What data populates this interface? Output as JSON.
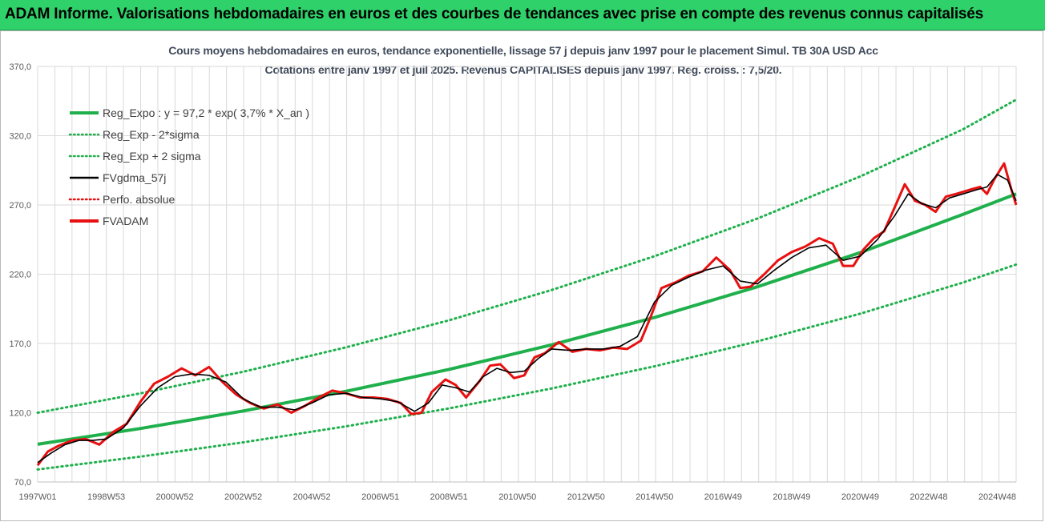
{
  "header": {
    "title": "ADAM Informe. Valorisations hebdomadaires en euros et des courbes de tendances avec prise en compte des revenus connus capitalisés"
  },
  "colors": {
    "header_bg": "#2fd16a",
    "trend": "#1fb04c",
    "price": "#e81010",
    "smooth": "#000000",
    "grid": "#d9d9d9"
  },
  "chart_data": {
    "type": "line",
    "title": "Cours moyens hebdomadaires en euros, tendance exponentielle, lissage 57 j depuis janv 1997 pour le placement Simul. TB 30A USD Acc",
    "subtitle": "Cotations entre janv 1997 et juil 2025. Revenus CAPITALISES depuis janv 1997.  Reg. croiss. : 7,5/20.",
    "xlabel": "",
    "ylabel": "",
    "ylim": [
      70,
      370
    ],
    "yticks": [
      "70,0",
      "120,0",
      "170,0",
      "220,0",
      "270,0",
      "320,0",
      "370,0"
    ],
    "xticks": [
      "1997W01",
      "1998W53",
      "2000W52",
      "2002W52",
      "2004W52",
      "2006W51",
      "2008W51",
      "2010W50",
      "2012W50",
      "2014W50",
      "2016W49",
      "2018W49",
      "2020W49",
      "2022W48",
      "2024W48"
    ],
    "x_range": [
      1997.0,
      2025.55
    ],
    "grid": true,
    "legend_position": "top-left",
    "legend": [
      {
        "label": "Reg_Expo : y = 97,2 * exp( 3,7% *  X_an )",
        "style": "solid-thick",
        "color": "#1fb04c"
      },
      {
        "label": "Reg_Exp - 2*sigma",
        "style": "dotted",
        "color": "#1fb04c"
      },
      {
        "label": "Reg_Exp + 2 sigma",
        "style": "dotted",
        "color": "#1fb04c"
      },
      {
        "label": "FVgdma_57j",
        "style": "solid",
        "color": "#000000"
      },
      {
        "label": "Perfo. absolue",
        "style": "dotted",
        "color": "#e81010"
      },
      {
        "label": "FVADAM",
        "style": "solid-thick",
        "color": "#e81010"
      }
    ],
    "series": [
      {
        "name": "Reg_Expo : y = 97,2 * exp( 3,7% *  X_an )",
        "x": [
          1997.0,
          2000.0,
          2003.0,
          2006.0,
          2009.0,
          2012.0,
          2015.0,
          2018.0,
          2021.0,
          2024.0,
          2025.55
        ],
        "values": [
          97.2,
          108.6,
          121.3,
          135.5,
          151.3,
          169.0,
          188.8,
          210.9,
          235.6,
          263.2,
          278.0
        ]
      },
      {
        "name": "Reg_Exp - 2*sigma",
        "x": [
          1997.0,
          2000.0,
          2003.0,
          2006.0,
          2009.0,
          2012.0,
          2015.0,
          2018.0,
          2021.0,
          2024.0,
          2025.55
        ],
        "values": [
          79.0,
          88.3,
          98.6,
          110.2,
          123.1,
          137.5,
          153.5,
          171.5,
          191.5,
          214.0,
          227.0
        ]
      },
      {
        "name": "Reg_Exp + 2 sigma",
        "x": [
          1997.0,
          2000.0,
          2003.0,
          2006.0,
          2009.0,
          2012.0,
          2015.0,
          2018.0,
          2021.0,
          2024.0,
          2025.55
        ],
        "values": [
          120.0,
          134.0,
          149.6,
          167.2,
          186.7,
          208.6,
          233.0,
          260.2,
          290.6,
          324.6,
          346.0
        ]
      },
      {
        "name": "FVADAM",
        "x": [
          1997.0,
          1997.3,
          1997.6,
          1998.0,
          1998.4,
          1998.8,
          1999.2,
          1999.6,
          2000.0,
          2000.4,
          2000.8,
          2001.2,
          2001.6,
          2002.0,
          2002.4,
          2002.8,
          2003.2,
          2003.6,
          2004.0,
          2004.4,
          2004.8,
          2005.2,
          2005.6,
          2006.0,
          2006.4,
          2006.8,
          2007.2,
          2007.6,
          2007.9,
          2008.2,
          2008.5,
          2008.9,
          2009.2,
          2009.5,
          2009.9,
          2010.2,
          2010.5,
          2010.9,
          2011.2,
          2011.5,
          2011.8,
          2012.2,
          2012.6,
          2013.0,
          2013.4,
          2013.8,
          2014.2,
          2014.6,
          2014.9,
          2015.2,
          2015.6,
          2016.0,
          2016.4,
          2016.8,
          2017.2,
          2017.5,
          2017.8,
          2018.2,
          2018.6,
          2019.0,
          2019.4,
          2019.8,
          2020.2,
          2020.5,
          2020.8,
          2021.1,
          2021.4,
          2021.7,
          2022.0,
          2022.3,
          2022.6,
          2022.9,
          2023.2,
          2023.5,
          2023.8,
          2024.2,
          2024.5,
          2024.7,
          2024.9,
          2025.2,
          2025.4,
          2025.55
        ],
        "values": [
          82,
          92,
          96,
          100,
          101,
          97,
          106,
          112,
          128,
          141,
          146,
          152,
          147,
          153,
          142,
          133,
          127,
          123,
          126,
          120,
          125,
          131,
          136,
          134,
          131,
          131,
          130,
          127,
          119,
          120,
          135,
          144,
          140,
          131,
          143,
          154,
          155,
          145,
          147,
          160,
          163,
          171,
          164,
          166,
          165,
          167,
          166,
          172,
          190,
          210,
          214,
          219,
          222,
          232,
          223,
          210,
          211,
          220,
          230,
          236,
          240,
          246,
          242,
          226,
          226,
          238,
          246,
          251,
          268,
          285,
          273,
          270,
          265,
          276,
          278,
          281,
          283,
          278,
          288,
          300,
          282,
          270
        ]
      },
      {
        "name": "FVgdma_57j",
        "x": [
          1997.0,
          1997.4,
          1997.8,
          1998.2,
          1998.6,
          1999.0,
          1999.5,
          2000.0,
          2000.5,
          2001.0,
          2001.5,
          2002.0,
          2002.5,
          2003.0,
          2003.5,
          2004.0,
          2004.5,
          2005.0,
          2005.5,
          2006.0,
          2006.5,
          2007.0,
          2007.5,
          2008.0,
          2008.4,
          2008.8,
          2009.2,
          2009.6,
          2010.0,
          2010.4,
          2010.8,
          2011.2,
          2011.6,
          2012.0,
          2012.5,
          2013.0,
          2013.5,
          2014.0,
          2014.5,
          2015.0,
          2015.5,
          2016.0,
          2016.5,
          2017.0,
          2017.5,
          2018.0,
          2018.5,
          2019.0,
          2019.5,
          2020.0,
          2020.5,
          2021.0,
          2021.5,
          2022.0,
          2022.4,
          2022.8,
          2023.2,
          2023.6,
          2024.0,
          2024.4,
          2024.7,
          2025.0,
          2025.3,
          2025.55
        ],
        "values": [
          84,
          91,
          97,
          100,
          100,
          101,
          109,
          125,
          138,
          146,
          148,
          147,
          142,
          130,
          124,
          124,
          122,
          127,
          133,
          134,
          131,
          130,
          128,
          121,
          127,
          140,
          138,
          135,
          146,
          152,
          149,
          150,
          159,
          166,
          165,
          166,
          166,
          168,
          175,
          200,
          212,
          218,
          223,
          226,
          215,
          213,
          223,
          232,
          239,
          241,
          230,
          233,
          245,
          262,
          278,
          271,
          268,
          275,
          278,
          281,
          283,
          292,
          288,
          273
        ]
      }
    ]
  }
}
